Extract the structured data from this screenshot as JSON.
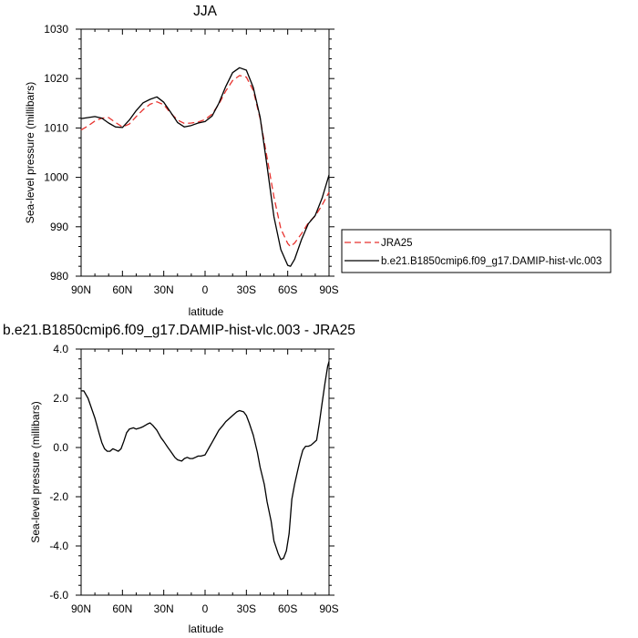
{
  "chart_data": [
    {
      "type": "line",
      "title": "JJA",
      "xlabel": "latitude",
      "ylabel": "Sea-level pressure (millibars)",
      "xlim": [
        90,
        -90
      ],
      "ylim": [
        980,
        1030
      ],
      "xticks": [
        90,
        60,
        30,
        0,
        -30,
        -60,
        -90
      ],
      "xtick_labels": [
        "90N",
        "60N",
        "30N",
        "0",
        "30S",
        "60S",
        "90S"
      ],
      "yticks": [
        980,
        990,
        1000,
        1010,
        1020,
        1030
      ],
      "ytick_labels": [
        "980",
        "990",
        "1000",
        "1010",
        "1020",
        "1030"
      ],
      "legend_position": "right",
      "series": [
        {
          "name": "JRA25",
          "color": "#e8322e",
          "style": "dashed",
          "x": [
            90,
            85,
            80,
            75,
            70,
            65,
            60,
            55,
            50,
            45,
            40,
            35,
            30,
            25,
            20,
            15,
            10,
            5,
            0,
            -5,
            -10,
            -15,
            -20,
            -25,
            -30,
            -35,
            -40,
            -45,
            -50,
            -55,
            -60,
            -62,
            -65,
            -70,
            -75,
            -80,
            -85,
            -90
          ],
          "y": [
            1009.6,
            1010.4,
            1011.4,
            1012.0,
            1012.1,
            1011.1,
            1010.2,
            1010.8,
            1012.3,
            1013.7,
            1014.8,
            1015.3,
            1014.7,
            1013.0,
            1011.6,
            1010.9,
            1011.0,
            1011.2,
            1011.7,
            1012.8,
            1014.8,
            1017.5,
            1019.6,
            1020.6,
            1020.3,
            1017.6,
            1011.9,
            1004.0,
            996.0,
            989.6,
            986.6,
            986.0,
            986.7,
            988.6,
            990.8,
            992.2,
            994.4,
            997.0
          ]
        },
        {
          "name": "b.e21.B1850cmip6.f09_g17.DAMIP-hist-vlc.003",
          "color": "#000000",
          "style": "solid",
          "x": [
            90,
            85,
            80,
            75,
            70,
            65,
            60,
            55,
            50,
            45,
            40,
            35,
            30,
            25,
            20,
            15,
            10,
            5,
            0,
            -5,
            -10,
            -15,
            -20,
            -25,
            -30,
            -35,
            -40,
            -45,
            -50,
            -55,
            -60,
            -62,
            -65,
            -70,
            -75,
            -80,
            -85,
            -90
          ],
          "y": [
            1011.9,
            1012.1,
            1012.3,
            1012.0,
            1011.0,
            1010.2,
            1010.1,
            1011.6,
            1013.5,
            1015.1,
            1015.8,
            1016.3,
            1015.2,
            1013.2,
            1011.1,
            1010.2,
            1010.5,
            1011.0,
            1011.3,
            1012.4,
            1015.0,
            1018.4,
            1021.2,
            1022.2,
            1021.7,
            1018.2,
            1012.2,
            1002.3,
            992.0,
            985.4,
            982.2,
            982.0,
            983.4,
            987.4,
            990.6,
            992.3,
            995.8,
            1000.5
          ]
        }
      ]
    },
    {
      "type": "line",
      "title": "b.e21.B1850cmip6.f09_g17.DAMIP-hist-vlc.003 - JRA25",
      "xlabel": "latitude",
      "ylabel": "Sea-level pressure (millibars)",
      "xlim": [
        90,
        -90
      ],
      "ylim": [
        -6,
        4
      ],
      "xticks": [
        90,
        60,
        30,
        0,
        -30,
        -60,
        -90
      ],
      "xtick_labels": [
        "90N",
        "60N",
        "30N",
        "0",
        "30S",
        "60S",
        "90S"
      ],
      "yticks": [
        -6,
        -4,
        -2,
        0,
        2,
        4
      ],
      "ytick_labels": [
        "-6.0",
        "-4.0",
        "-2.0",
        "0.0",
        "2.0",
        "4.0"
      ],
      "series": [
        {
          "color": "#000000",
          "style": "solid",
          "x": [
            90,
            88,
            85,
            80,
            77,
            75,
            73,
            71,
            69,
            67,
            65,
            63,
            61,
            59,
            57,
            55,
            52,
            50,
            47,
            45,
            42,
            40,
            38,
            35,
            32,
            30,
            27,
            25,
            22,
            20,
            17,
            15,
            13,
            11,
            9,
            7,
            5,
            3,
            0,
            -3,
            -5,
            -8,
            -10,
            -13,
            -15,
            -18,
            -20,
            -23,
            -25,
            -28,
            -30,
            -32,
            -35,
            -38,
            -40,
            -43,
            -45,
            -48,
            -50,
            -53,
            -55,
            -57,
            -59,
            -61,
            -62,
            -63,
            -65,
            -67,
            -69,
            -71,
            -73,
            -75,
            -77,
            -79,
            -81,
            -83,
            -85,
            -87,
            -89,
            -90
          ],
          "y": [
            2.3,
            2.3,
            2.0,
            1.2,
            0.6,
            0.2,
            -0.05,
            -0.15,
            -0.15,
            -0.05,
            -0.1,
            -0.15,
            -0.05,
            0.25,
            0.6,
            0.75,
            0.8,
            0.75,
            0.8,
            0.85,
            0.95,
            1.0,
            0.9,
            0.7,
            0.4,
            0.25,
            0.0,
            -0.15,
            -0.4,
            -0.5,
            -0.55,
            -0.45,
            -0.4,
            -0.45,
            -0.45,
            -0.4,
            -0.35,
            -0.35,
            -0.3,
            0.0,
            0.2,
            0.5,
            0.7,
            0.9,
            1.05,
            1.2,
            1.3,
            1.45,
            1.5,
            1.45,
            1.3,
            1.0,
            0.5,
            -0.2,
            -0.8,
            -1.5,
            -2.2,
            -3.0,
            -3.8,
            -4.3,
            -4.55,
            -4.5,
            -4.2,
            -3.5,
            -2.8,
            -2.1,
            -1.5,
            -1.0,
            -0.5,
            -0.1,
            0.05,
            0.05,
            0.1,
            0.2,
            0.3,
            1.0,
            1.8,
            2.6,
            3.3,
            3.5
          ]
        }
      ]
    }
  ]
}
